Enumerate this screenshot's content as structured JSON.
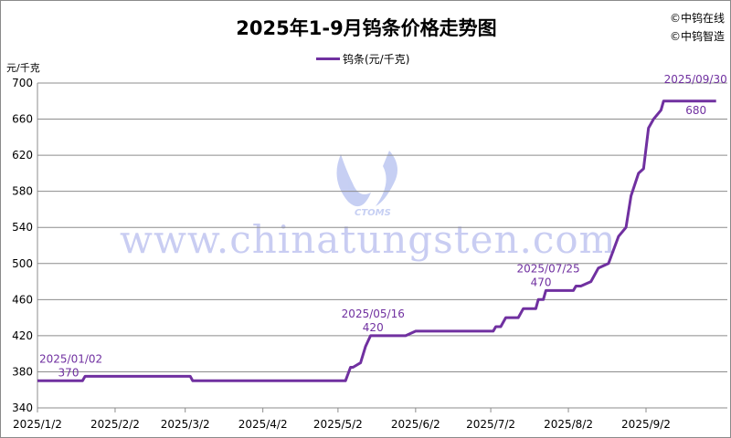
{
  "chart_data": {
    "type": "line",
    "title": "2025年1-9月钨条价格走势图",
    "ylabel": "元/千克",
    "ylim": [
      340,
      700
    ],
    "yticks": [
      340,
      380,
      420,
      460,
      500,
      540,
      580,
      620,
      660,
      700
    ],
    "xticks": [
      "2025/1/2",
      "2025/2/2",
      "2025/3/2",
      "2025/4/2",
      "2025/5/2",
      "2025/6/2",
      "2025/7/2",
      "2025/8/2",
      "2025/9/2"
    ],
    "grid": true,
    "legend": "top-center",
    "color": "#7030a0",
    "series": [
      {
        "name": "钨条(元/千克)",
        "points": [
          [
            "2025-01-02",
            370
          ],
          [
            "2025-01-20",
            370
          ],
          [
            "2025-01-21",
            375
          ],
          [
            "2025-03-04",
            375
          ],
          [
            "2025-03-05",
            370
          ],
          [
            "2025-05-05",
            370
          ],
          [
            "2025-05-07",
            385
          ],
          [
            "2025-05-08",
            385
          ],
          [
            "2025-05-11",
            390
          ],
          [
            "2025-05-13",
            408
          ],
          [
            "2025-05-15",
            420
          ],
          [
            "2025-05-29",
            420
          ],
          [
            "2025-06-02",
            425
          ],
          [
            "2025-07-03",
            425
          ],
          [
            "2025-07-04",
            430
          ],
          [
            "2025-07-06",
            430
          ],
          [
            "2025-07-08",
            440
          ],
          [
            "2025-07-13",
            440
          ],
          [
            "2025-07-15",
            450
          ],
          [
            "2025-07-20",
            450
          ],
          [
            "2025-07-21",
            460
          ],
          [
            "2025-07-23",
            460
          ],
          [
            "2025-07-24",
            470
          ],
          [
            "2025-08-04",
            470
          ],
          [
            "2025-08-05",
            475
          ],
          [
            "2025-08-07",
            475
          ],
          [
            "2025-08-11",
            480
          ],
          [
            "2025-08-14",
            495
          ],
          [
            "2025-08-18",
            500
          ],
          [
            "2025-08-22",
            530
          ],
          [
            "2025-08-25",
            540
          ],
          [
            "2025-08-27",
            575
          ],
          [
            "2025-08-30",
            600
          ],
          [
            "2025-09-01",
            605
          ],
          [
            "2025-09-03",
            650
          ],
          [
            "2025-09-05",
            660
          ],
          [
            "2025-09-08",
            670
          ],
          [
            "2025-09-09",
            680
          ],
          [
            "2025-09-30",
            680
          ]
        ]
      }
    ],
    "annotations": [
      {
        "date": "2025-01-02",
        "value": 370,
        "label": "2025/01/02",
        "value_label": "370"
      },
      {
        "date": "2025-05-16",
        "value": 420,
        "label": "2025/05/16",
        "value_label": "420"
      },
      {
        "date": "2025-07-25",
        "value": 470,
        "label": "2025/07/25",
        "value_label": "470"
      },
      {
        "date": "2025-09-30",
        "value": 680,
        "label": "2025/09/30",
        "value_label": "680"
      }
    ]
  },
  "copyright": [
    "©中钨在线",
    "©中钨智造"
  ],
  "watermark": {
    "text": "www.chinatungsten.com",
    "logo": "CTOMS"
  }
}
